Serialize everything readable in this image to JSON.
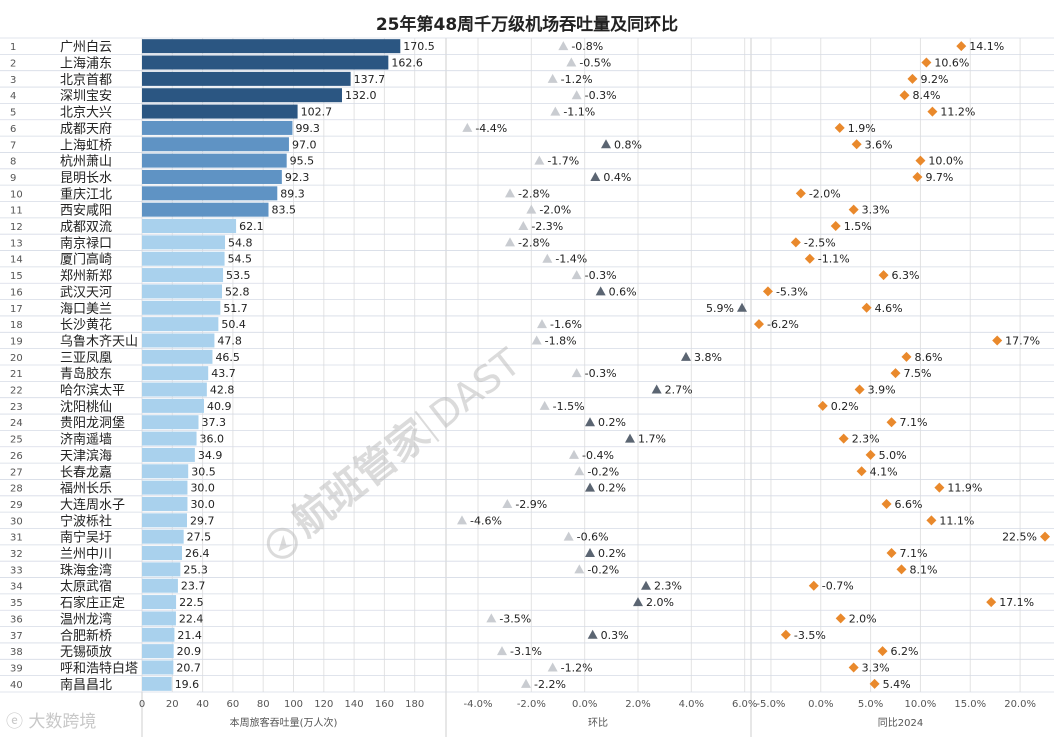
{
  "title": "25年第48周千万级机场吞吐量及同环比",
  "watermark": {
    "brand": "航班管家",
    "code": "DAST"
  },
  "footer": {
    "mark_icon": "weibo-icon",
    "mark_text": "大数跨境"
  },
  "colors": {
    "bar_dark": "#2b5682",
    "bar_mid": "#5f93c4",
    "bar_light": "#a9d1ed",
    "triangle_dark": "#5b6572",
    "triangle_light": "#c9ccd1",
    "diamond": "#e9892c",
    "grid": "#e3e3e3",
    "row_line": "#d6dbe6"
  },
  "chart_data": [
    {
      "type": "bar",
      "orientation": "horizontal",
      "xlabel": "本周旅客吞吐量(万人次)",
      "xlim": [
        0,
        200
      ],
      "xticks": [
        "0",
        "20",
        "40",
        "60",
        "80",
        "100",
        "120",
        "140",
        "160",
        "180"
      ],
      "ranks": [
        "1",
        "2",
        "3",
        "4",
        "5",
        "6",
        "7",
        "8",
        "9",
        "10",
        "11",
        "12",
        "13",
        "14",
        "15",
        "16",
        "17",
        "18",
        "19",
        "20",
        "21",
        "22",
        "23",
        "24",
        "25",
        "26",
        "27",
        "28",
        "29",
        "30",
        "31",
        "32",
        "33",
        "34",
        "35",
        "36",
        "37",
        "38",
        "39",
        "40"
      ],
      "categories": [
        "广州白云",
        "上海浦东",
        "北京首都",
        "深圳宝安",
        "北京大兴",
        "成都天府",
        "上海虹桥",
        "杭州萧山",
        "昆明长水",
        "重庆江北",
        "西安咸阳",
        "成都双流",
        "南京禄口",
        "厦门高崎",
        "郑州新郑",
        "武汉天河",
        "海口美兰",
        "长沙黄花",
        "乌鲁木齐天山",
        "三亚凤凰",
        "青岛胶东",
        "哈尔滨太平",
        "沈阳桃仙",
        "贵阳龙洞堡",
        "济南遥墙",
        "天津滨海",
        "长春龙嘉",
        "福州长乐",
        "大连周水子",
        "宁波栎社",
        "南宁吴圩",
        "兰州中川",
        "珠海金湾",
        "太原武宿",
        "石家庄正定",
        "温州龙湾",
        "合肥新桥",
        "无锡硕放",
        "呼和浩特白塔",
        "南昌昌北"
      ],
      "values": [
        170.5,
        162.6,
        137.7,
        132.0,
        102.7,
        99.3,
        97.0,
        95.5,
        92.3,
        89.3,
        83.5,
        62.1,
        54.8,
        54.5,
        53.5,
        52.8,
        51.7,
        50.4,
        47.8,
        46.5,
        43.7,
        42.8,
        40.9,
        37.3,
        36.0,
        34.9,
        30.5,
        30.0,
        30.0,
        29.7,
        27.5,
        26.4,
        25.3,
        23.7,
        22.5,
        22.4,
        21.4,
        20.9,
        20.7,
        19.6
      ],
      "labels": [
        "170.5",
        "162.6",
        "137.7",
        "132.0",
        "102.7",
        "99.3",
        "97.0",
        "95.5",
        "92.3",
        "89.3",
        "83.5",
        "62.1",
        "54.8",
        "54.5",
        "53.5",
        "52.8",
        "51.7",
        "50.4",
        "47.8",
        "46.5",
        "43.7",
        "42.8",
        "40.9",
        "37.3",
        "36.0",
        "34.9",
        "30.5",
        "30.0",
        "30.0",
        "29.7",
        "27.5",
        "26.4",
        "25.3",
        "23.7",
        "22.5",
        "22.4",
        "21.4",
        "20.9",
        "20.7",
        "19.6"
      ]
    },
    {
      "type": "scatter",
      "marker": "triangle",
      "xlabel": "环比",
      "xlim": [
        -5.2,
        6.2
      ],
      "xticks": [
        -4,
        -2,
        0,
        2,
        4,
        6
      ],
      "xtick_labels": [
        "-4.0%",
        "-2.0%",
        "0.0%",
        "2.0%",
        "4.0%",
        "6.0%"
      ],
      "values": [
        -0.8,
        -0.5,
        -1.2,
        -0.3,
        -1.1,
        -4.4,
        0.8,
        -1.7,
        0.4,
        -2.8,
        -2.0,
        -2.3,
        -2.8,
        -1.4,
        -0.3,
        0.6,
        5.9,
        -1.6,
        -1.8,
        3.8,
        -0.3,
        2.7,
        -1.5,
        0.2,
        1.7,
        -0.4,
        -0.2,
        0.2,
        -2.9,
        -4.6,
        -0.6,
        0.2,
        -0.2,
        2.3,
        2.0,
        -3.5,
        0.3,
        -3.1,
        -1.2,
        -2.2
      ],
      "labels": [
        "-0.8%",
        "-0.5%",
        "-1.2%",
        "-0.3%",
        "-1.1%",
        "-4.4%",
        "0.8%",
        "-1.7%",
        "0.4%",
        "-2.8%",
        "-2.0%",
        "-2.3%",
        "-2.8%",
        "-1.4%",
        "-0.3%",
        "0.6%",
        "5.9%",
        "-1.6%",
        "-1.8%",
        "3.8%",
        "-0.3%",
        "2.7%",
        "-1.5%",
        "0.2%",
        "1.7%",
        "-0.4%",
        "-0.2%",
        "0.2%",
        "-2.9%",
        "-4.6%",
        "-0.6%",
        "0.2%",
        "-0.2%",
        "2.3%",
        "2.0%",
        "-3.5%",
        "0.3%",
        "-3.1%",
        "-1.2%",
        "-2.2%"
      ]
    },
    {
      "type": "scatter",
      "marker": "diamond",
      "xlabel": "同比2024",
      "xlim": [
        -7,
        23
      ],
      "xticks": [
        -5,
        0,
        5,
        10,
        15,
        20
      ],
      "xtick_labels": [
        "-5.0%",
        "0.0%",
        "5.0%",
        "10.0%",
        "15.0%",
        "20.0%"
      ],
      "values": [
        14.1,
        10.6,
        9.2,
        8.4,
        11.2,
        1.9,
        3.6,
        10.0,
        9.7,
        -2.0,
        3.3,
        1.5,
        -2.5,
        -1.1,
        6.3,
        -5.3,
        4.6,
        -6.2,
        17.7,
        8.6,
        7.5,
        3.9,
        0.2,
        7.1,
        2.3,
        5.0,
        4.1,
        11.9,
        6.6,
        11.1,
        22.5,
        7.1,
        8.1,
        -0.7,
        17.1,
        2.0,
        -3.5,
        6.2,
        3.3,
        5.4
      ],
      "labels": [
        "14.1%",
        "10.6%",
        "9.2%",
        "8.4%",
        "11.2%",
        "1.9%",
        "3.6%",
        "10.0%",
        "9.7%",
        "-2.0%",
        "3.3%",
        "1.5%",
        "-2.5%",
        "-1.1%",
        "6.3%",
        "-5.3%",
        "4.6%",
        "-6.2%",
        "17.7%",
        "8.6%",
        "7.5%",
        "3.9%",
        "0.2%",
        "7.1%",
        "2.3%",
        "5.0%",
        "4.1%",
        "11.9%",
        "6.6%",
        "11.1%",
        "22.5%",
        "7.1%",
        "8.1%",
        "-0.7%",
        "17.1%",
        "2.0%",
        "-3.5%",
        "6.2%",
        "3.3%",
        "5.4%"
      ]
    }
  ]
}
